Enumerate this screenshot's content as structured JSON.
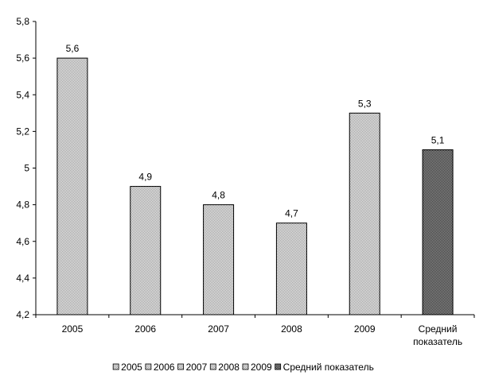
{
  "chart_data": {
    "type": "bar",
    "categories": [
      "2005",
      "2006",
      "2007",
      "2008",
      "2009",
      "Средний показатель"
    ],
    "category_labels": [
      [
        "2005"
      ],
      [
        "2006"
      ],
      [
        "2007"
      ],
      [
        "2008"
      ],
      [
        "2009"
      ],
      [
        "Средний",
        "показатель"
      ]
    ],
    "values": [
      5.6,
      4.9,
      4.8,
      4.7,
      5.3,
      5.1
    ],
    "value_labels": [
      "5,6",
      "4,9",
      "4,8",
      "4,7",
      "5,3",
      "5,1"
    ],
    "ylim": [
      4.2,
      5.8
    ],
    "yticks": [
      4.2,
      4.4,
      4.6,
      4.8,
      5.0,
      5.2,
      5.4,
      5.6,
      5.8
    ],
    "ytick_labels": [
      "4,2",
      "4,4",
      "4,6",
      "4,8",
      "5",
      "5,2",
      "5,4",
      "5,6",
      "5,8"
    ],
    "title": "",
    "xlabel": "",
    "ylabel": "",
    "grid": false,
    "legend": {
      "position": "bottom",
      "entries": [
        "2005",
        "2006",
        "2007",
        "2008",
        "2009",
        "Средний показатель"
      ]
    },
    "pattern": [
      "light-checker",
      "light-checker",
      "light-checker",
      "light-checker",
      "light-checker",
      "dark-checker"
    ],
    "colors": {
      "light_checker_a": "#ffffff",
      "light_checker_b": "#8c8c8c",
      "dark_checker_a": "#2b2b2b",
      "dark_checker_b": "#a0a0a0",
      "axis": "#000000"
    }
  }
}
